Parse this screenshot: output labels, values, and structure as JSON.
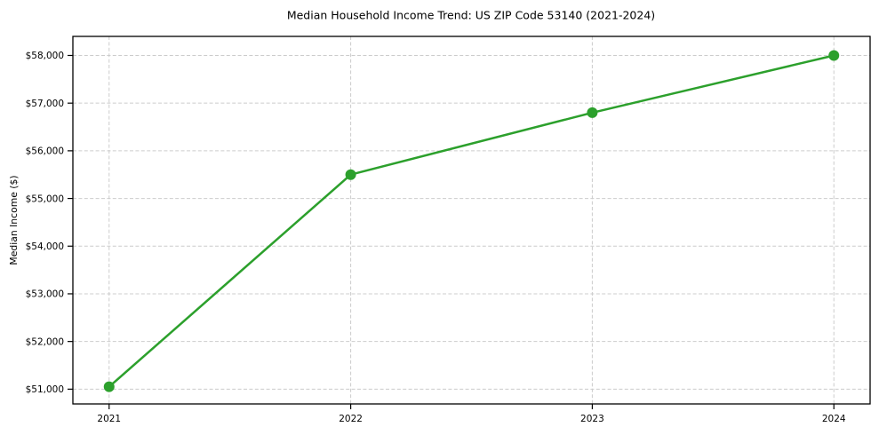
{
  "chart_data": {
    "type": "line",
    "title": "Median Household Income Trend: US ZIP Code 53140 (2021-2024)",
    "xlabel": "",
    "ylabel": "Median Income ($)",
    "categories": [
      2021,
      2022,
      2023,
      2024
    ],
    "x_tick_labels": [
      "2021",
      "2022",
      "2023",
      "2024"
    ],
    "series": [
      {
        "name": "median_household_income",
        "values": [
          51050,
          55500,
          56800,
          58000
        ]
      }
    ],
    "y_ticks": [
      51000,
      52000,
      53000,
      54000,
      55000,
      56000,
      57000,
      58000
    ],
    "y_tick_labels": [
      "$51,000",
      "$52,000",
      "$53,000",
      "$54,000",
      "$55,000",
      "$56,000",
      "$57,000",
      "$58,000"
    ],
    "xlim": [
      2020.85,
      2024.15
    ],
    "ylim": [
      50690,
      58400
    ],
    "grid": true,
    "grid_line_style": "dashed",
    "legend_position": "none",
    "marker": "circle",
    "colors": {
      "line": "#2ca02c",
      "marker": "#2ca02c",
      "grid": "#cccccc",
      "spine": "#000000",
      "text": "#000000",
      "background": "#ffffff"
    }
  }
}
